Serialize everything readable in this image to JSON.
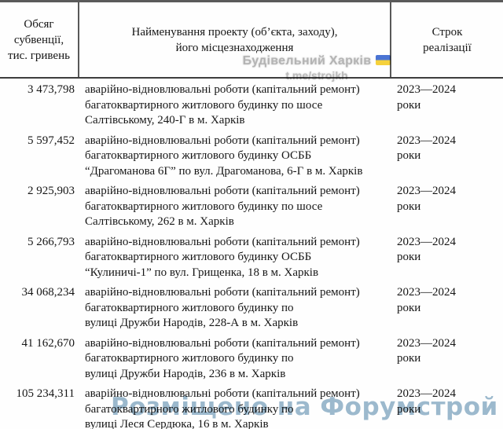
{
  "table": {
    "headers": {
      "amount": "Обсяг\nсубвенції,\nтис. гривень",
      "project": "Найменування проекту (об’єкта, заходу),\nйого місцезнаходження",
      "term": "Строк\nреалізації"
    },
    "rows": [
      {
        "amount": "3 473,798",
        "project": "аварійно-відновлювальні роботи (капітальний ремонт)\nбагатоквартирного житлового будинку по шосе\nСалтівському, 240-Г в м. Харків",
        "term": "2023—2024\nроки"
      },
      {
        "amount": "5 597,452",
        "project": "аварійно-відновлювальні роботи (капітальний ремонт)\nбагатоквартирного житлового будинку ОСББ\n“Драгоманова 6Г” по вул. Драгоманова, 6-Г в м. Харків",
        "term": "2023—2024\nроки"
      },
      {
        "amount": "2 925,903",
        "project": "аварійно-відновлювальні роботи (капітальний ремонт)\nбагатоквартирного житлового будинку по шосе\nСалтівському, 262 в м. Харків",
        "term": "2023—2024\nроки"
      },
      {
        "amount": "5 266,793",
        "project": "аварійно-відновлювальні роботи (капітальний ремонт)\nбагатоквартирного житлового будинку ОСББ\n“Кулиничі-1” по вул. Грищенка, 18 в м. Харків",
        "term": "2023—2024\nроки"
      },
      {
        "amount": "34 068,234",
        "project": "аварійно-відновлювальні роботи (капітальний ремонт)\nбагатоквартирного житлового будинку по\nвулиці Дружби Народів, 228-А в м. Харків",
        "term": "2023—2024\nроки"
      },
      {
        "amount": "41 162,670",
        "project": "аварійно-відновлювальні роботи (капітальний ремонт)\nбагатоквартирного житлового будинку по\nвулиці Дружби Народів, 236 в м. Харків",
        "term": "2023—2024\nроки"
      },
      {
        "amount": "105 234,311",
        "project": "аварійно-відновлювальні роботи (капітальний ремонт)\nбагатоквартирного житлового будинку по\nвулиці Леся Сердюка, 16 в м. Харків",
        "term": "2023—2024\nроки"
      }
    ]
  },
  "watermarks": {
    "telegram": {
      "line1": "Будівельний Харків",
      "line2": "t.me/strojkh",
      "color": "#b5b5b5",
      "flag_colors": {
        "top": "#4a74d4",
        "bottom": "#f6d23c"
      }
    },
    "forum": {
      "text": "Розміщено на Форумстрой",
      "color": "#92b3c9"
    }
  }
}
